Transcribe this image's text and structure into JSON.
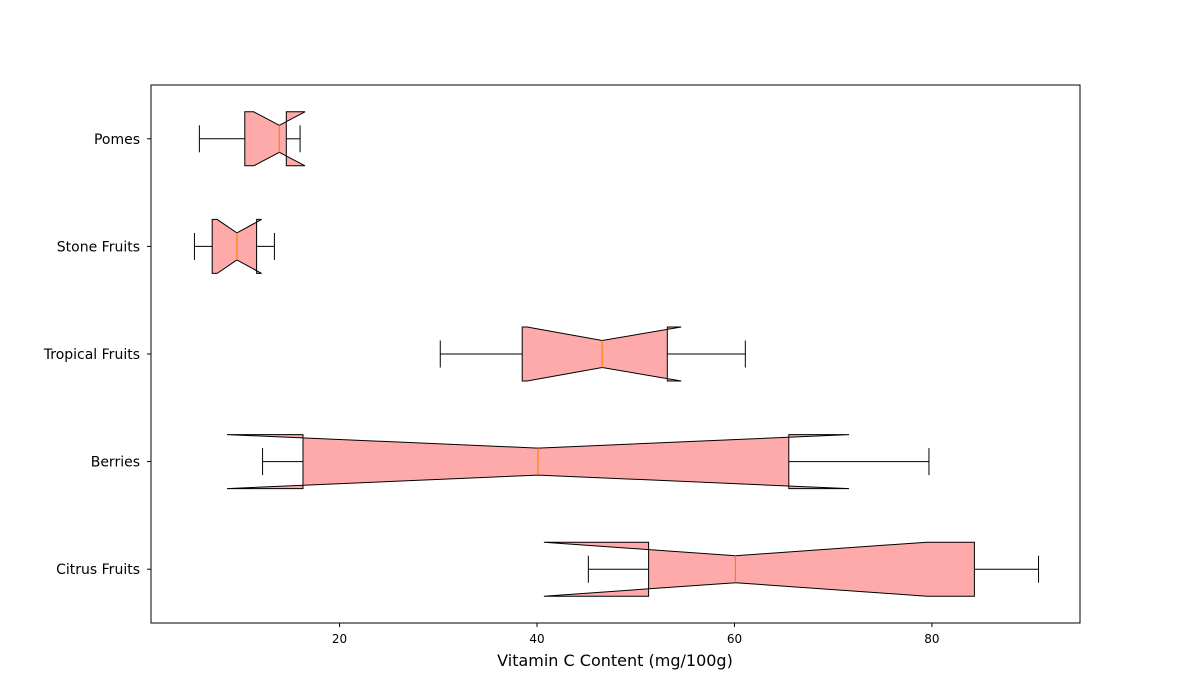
{
  "chart_data": {
    "type": "boxplot",
    "orientation": "horizontal",
    "notched": true,
    "title": "",
    "xlabel": "Vitamin C Content (mg/100g)",
    "ylabel": "",
    "xlim": [
      0.9,
      95.0
    ],
    "xticks": [
      20,
      40,
      60,
      80
    ],
    "box_color": "#ffaaaa",
    "median_color": "#ff7f0e",
    "edge_color": "#000000",
    "categories": [
      "Citrus Fruits",
      "Berries",
      "Tropical Fruits",
      "Stone Fruits",
      "Pomes"
    ],
    "series": [
      {
        "category": "Citrus Fruits",
        "whisker_low": 45.2,
        "q1": 51.3,
        "median": 60.1,
        "q3": 84.3,
        "whisker_high": 90.8,
        "notch_low": 40.7,
        "notch_high": 79.5
      },
      {
        "category": "Berries",
        "whisker_low": 12.2,
        "q1": 16.3,
        "median": 40.1,
        "q3": 65.5,
        "whisker_high": 79.7,
        "notch_low": 8.6,
        "notch_high": 71.6
      },
      {
        "category": "Tropical Fruits",
        "whisker_low": 30.2,
        "q1": 38.5,
        "median": 46.6,
        "q3": 53.2,
        "whisker_high": 61.1,
        "notch_low": 39.0,
        "notch_high": 54.6
      },
      {
        "category": "Stone Fruits",
        "whisker_low": 5.3,
        "q1": 7.1,
        "median": 9.6,
        "q3": 11.6,
        "whisker_high": 13.4,
        "notch_low": 7.6,
        "notch_high": 12.1
      },
      {
        "category": "Pomes",
        "whisker_low": 5.8,
        "q1": 10.4,
        "median": 13.9,
        "q3": 14.6,
        "whisker_high": 16.0,
        "notch_low": 11.3,
        "notch_high": 16.5
      }
    ]
  }
}
